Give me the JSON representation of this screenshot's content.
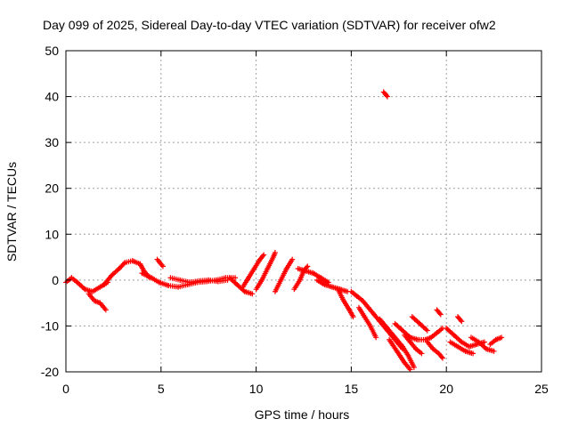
{
  "chart_data": {
    "type": "scatter",
    "title": "Day 099 of 2025, Sidereal Day-to-day VTEC variation (SDTVAR) for receiver ofw2",
    "xlabel": "GPS time / hours",
    "ylabel": "SDTVAR / TECUs",
    "xlim": [
      0,
      25
    ],
    "ylim": [
      -20,
      50
    ],
    "xticks": [
      0,
      5,
      10,
      15,
      20,
      25
    ],
    "yticks": [
      -20,
      -10,
      0,
      10,
      20,
      30,
      40,
      50
    ],
    "xtick_labels": [
      "0",
      "5",
      "10",
      "15",
      "20",
      "25"
    ],
    "ytick_labels": [
      "-20",
      "-10",
      "0",
      "10",
      "20",
      "30",
      "40",
      "50"
    ],
    "grid": true,
    "marker": "+",
    "color": "#ff0000",
    "series": [
      {
        "name": "Satellite tracks",
        "tracks": [
          [
            [
              0.0,
              -0.5
            ],
            [
              0.3,
              0.5
            ],
            [
              0.6,
              -0.5
            ],
            [
              1.0,
              -2.0
            ],
            [
              1.4,
              -2.5
            ],
            [
              1.8,
              -1.5
            ],
            [
              2.2,
              -0.5
            ]
          ],
          [
            [
              1.2,
              -3.0
            ],
            [
              1.5,
              -4.5
            ],
            [
              1.8,
              -5.0
            ],
            [
              2.1,
              -6.5
            ]
          ],
          [
            [
              2.0,
              -1.0
            ],
            [
              2.4,
              1.0
            ],
            [
              2.8,
              2.5
            ],
            [
              3.1,
              3.8
            ],
            [
              3.5,
              4.2
            ],
            [
              3.9,
              3.5
            ],
            [
              4.1,
              2.0
            ],
            [
              4.4,
              0.5
            ]
          ],
          [
            [
              4.0,
              1.5
            ],
            [
              4.5,
              0.5
            ],
            [
              4.9,
              -0.5
            ],
            [
              5.4,
              -1.2
            ],
            [
              5.9,
              -1.5
            ],
            [
              6.4,
              -1.0
            ],
            [
              6.9,
              -0.5
            ],
            [
              7.4,
              -0.3
            ],
            [
              7.9,
              0.0
            ],
            [
              8.4,
              0.5
            ],
            [
              8.9,
              0.5
            ]
          ],
          [
            [
              4.8,
              4.5
            ],
            [
              5.1,
              3.0
            ]
          ],
          [
            [
              5.5,
              0.5
            ],
            [
              6.0,
              0.0
            ],
            [
              6.5,
              -0.5
            ],
            [
              7.0,
              -0.2
            ],
            [
              7.5,
              0.0
            ],
            [
              8.0,
              -0.3
            ],
            [
              8.5,
              0.0
            ]
          ],
          [
            [
              8.6,
              0.5
            ],
            [
              9.0,
              -1.0
            ],
            [
              9.4,
              -2.5
            ],
            [
              9.8,
              -3.0
            ]
          ],
          [
            [
              9.3,
              -1.5
            ],
            [
              9.6,
              0.5
            ],
            [
              9.9,
              2.5
            ],
            [
              10.2,
              4.5
            ],
            [
              10.4,
              5.5
            ]
          ],
          [
            [
              10.0,
              -2.0
            ],
            [
              10.3,
              0.0
            ],
            [
              10.6,
              2.5
            ],
            [
              10.9,
              5.0
            ],
            [
              11.0,
              6.0
            ]
          ],
          [
            [
              11.0,
              -2.5
            ],
            [
              11.3,
              0.0
            ],
            [
              11.6,
              2.5
            ],
            [
              11.9,
              4.5
            ]
          ],
          [
            [
              12.0,
              -2.0
            ],
            [
              12.3,
              0.0
            ],
            [
              12.5,
              2.0
            ],
            [
              12.7,
              3.0
            ]
          ],
          [
            [
              12.2,
              2.5
            ],
            [
              12.6,
              2.0
            ],
            [
              13.0,
              1.5
            ],
            [
              13.4,
              0.5
            ],
            [
              13.8,
              -0.5
            ]
          ],
          [
            [
              13.2,
              0.0
            ],
            [
              13.6,
              -1.0
            ],
            [
              14.0,
              -1.5
            ],
            [
              14.4,
              -2.0
            ],
            [
              14.8,
              -2.5
            ]
          ],
          [
            [
              14.3,
              -2.0
            ],
            [
              14.6,
              -4.5
            ],
            [
              14.9,
              -6.5
            ],
            [
              15.1,
              -8.0
            ]
          ],
          [
            [
              15.0,
              -2.5
            ],
            [
              15.3,
              -3.5
            ],
            [
              15.6,
              -4.5
            ],
            [
              15.9,
              -6.0
            ],
            [
              16.2,
              -7.5
            ],
            [
              16.5,
              -9.0
            ],
            [
              16.8,
              -10.5
            ],
            [
              17.1,
              -12.0
            ],
            [
              17.4,
              -13.5
            ],
            [
              17.7,
              -15.0
            ]
          ],
          [
            [
              15.4,
              -6.0
            ],
            [
              15.7,
              -8.0
            ],
            [
              16.0,
              -10.0
            ],
            [
              16.3,
              -12.5
            ]
          ],
          [
            [
              16.5,
              -8.5
            ],
            [
              16.9,
              -10.5
            ],
            [
              17.3,
              -12.5
            ],
            [
              17.7,
              -14.5
            ],
            [
              18.0,
              -16.5
            ],
            [
              18.3,
              -19.0
            ]
          ],
          [
            [
              17.0,
              -13.0
            ],
            [
              17.4,
              -15.5
            ],
            [
              17.8,
              -18.0
            ],
            [
              18.1,
              -19.5
            ]
          ],
          [
            [
              17.8,
              -12.0
            ],
            [
              18.1,
              -13.5
            ],
            [
              18.4,
              -15.0
            ],
            [
              18.7,
              -16.0
            ]
          ],
          [
            [
              17.3,
              -9.5
            ],
            [
              17.7,
              -11.0
            ],
            [
              18.1,
              -12.5
            ],
            [
              18.5,
              -13.0
            ],
            [
              18.9,
              -13.0
            ],
            [
              19.2,
              -12.5
            ],
            [
              19.5,
              -11.5
            ],
            [
              19.8,
              -10.5
            ]
          ],
          [
            [
              18.2,
              -8.0
            ],
            [
              18.6,
              -9.5
            ],
            [
              19.0,
              -11.0
            ]
          ],
          [
            [
              19.0,
              -13.5
            ],
            [
              19.3,
              -15.0
            ],
            [
              19.6,
              -16.0
            ],
            [
              19.8,
              -17.0
            ]
          ],
          [
            [
              19.5,
              -6.5
            ],
            [
              19.7,
              -7.5
            ]
          ],
          [
            [
              20.0,
              -10.5
            ],
            [
              20.4,
              -12.0
            ],
            [
              20.8,
              -13.5
            ],
            [
              21.2,
              -14.5
            ],
            [
              21.6,
              -14.0
            ],
            [
              22.0,
              -13.5
            ]
          ],
          [
            [
              20.2,
              -13.5
            ],
            [
              20.6,
              -14.5
            ],
            [
              21.0,
              -15.5
            ],
            [
              21.4,
              -16.0
            ]
          ],
          [
            [
              20.6,
              -8.0
            ],
            [
              20.8,
              -9.0
            ]
          ],
          [
            [
              21.3,
              -12.5
            ],
            [
              21.7,
              -13.5
            ],
            [
              22.1,
              -15.0
            ],
            [
              22.5,
              -15.5
            ]
          ],
          [
            [
              22.3,
              -14.0
            ],
            [
              22.6,
              -13.0
            ],
            [
              22.9,
              -12.5
            ]
          ],
          [
            [
              16.7,
              41.0
            ],
            [
              16.8,
              40.5
            ],
            [
              16.9,
              40.0
            ]
          ]
        ]
      }
    ]
  }
}
